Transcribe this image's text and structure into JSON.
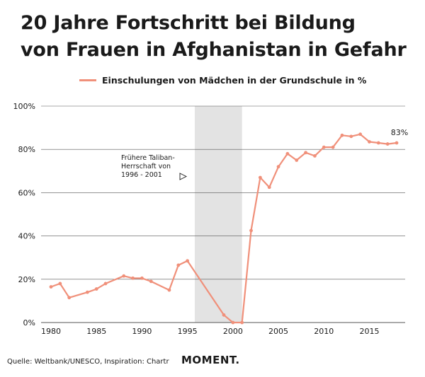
{
  "title_lines": [
    "20 Jahre Fortschritt bei Bildung",
    "von Frauen in Afghanistan in Gefahr"
  ],
  "source": "Quelle: Weltbank/UNESCO, Inspiration: Chartr",
  "logo": "MOMENT.",
  "colors": {
    "line": "#f0907a",
    "shade": "#e3e3e3",
    "grid": "#555555"
  },
  "chart_data": {
    "type": "line",
    "title": "20 Jahre Fortschritt bei Bildung von Frauen in Afghanistan in Gefahr",
    "xlabel": "",
    "ylabel": "",
    "xlim": [
      1980,
      2019
    ],
    "ylim": [
      0,
      100
    ],
    "x_ticks": [
      1980,
      1985,
      1990,
      1995,
      2000,
      2005,
      2010,
      2015
    ],
    "y_ticks": [
      0,
      20,
      40,
      60,
      80,
      100
    ],
    "y_tick_labels": [
      "0%",
      "20%",
      "40%",
      "60%",
      "80%",
      "100%"
    ],
    "grid": "horizontal",
    "legend_position": "top",
    "series": [
      {
        "name": "Einschulungen von Mädchen in der Grundschule in %",
        "x": [
          1980,
          1981,
          1982,
          1984,
          1985,
          1986,
          1988,
          1989,
          1990,
          1991,
          1993,
          1994,
          1995,
          1999,
          2000,
          2001,
          2002,
          2003,
          2004,
          2005,
          2006,
          2007,
          2008,
          2009,
          2010,
          2011,
          2012,
          2013,
          2014,
          2015,
          2016,
          2017,
          2018
        ],
        "y": [
          16.5,
          18,
          11.5,
          14,
          15.5,
          18,
          21.5,
          20.5,
          20.5,
          19,
          15,
          26.5,
          28.5,
          3.5,
          0,
          0,
          42.5,
          67,
          62.5,
          72,
          78,
          75,
          78.5,
          77,
          81,
          81,
          86.5,
          86,
          87,
          83.5,
          83,
          82.5,
          83
        ]
      }
    ],
    "shaded_region": {
      "x_start": 1996,
      "x_end": 2001,
      "label_lines": [
        "Frühere Taliban-",
        "Herrschaft von",
        "1996 - 2001"
      ]
    },
    "end_label": "83%"
  }
}
